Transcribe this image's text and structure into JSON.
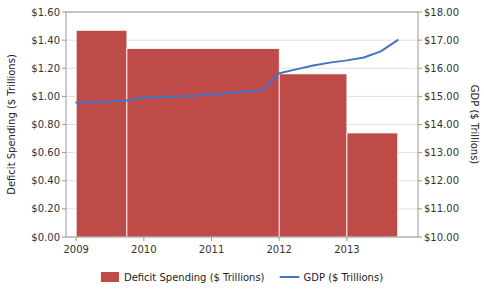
{
  "chart_data": {
    "type": "bar",
    "series": [
      {
        "name": "Deficit Spending ($ Trillions)",
        "type": "bar",
        "color": "#be4b48",
        "bins": [
          2009.0,
          2009.75,
          2012.0,
          2013.0,
          2013.75
        ],
        "values": [
          1.47,
          1.34,
          1.16,
          0.74
        ]
      },
      {
        "name": "GDP ($ Trillions)",
        "type": "line",
        "axis": "y2",
        "color": "#4472c4",
        "x": [
          2009.0,
          2009.15,
          2009.3,
          2009.5,
          2009.75,
          2010.0,
          2010.25,
          2010.5,
          2010.75,
          2011.0,
          2011.25,
          2011.5,
          2011.75,
          2012.0,
          2012.25,
          2012.5,
          2012.75,
          2013.0,
          2013.25,
          2013.5,
          2013.75
        ],
        "values": [
          14.78,
          14.79,
          14.79,
          14.82,
          14.85,
          14.96,
          14.98,
          15.0,
          15.02,
          15.07,
          15.12,
          15.17,
          15.22,
          15.82,
          15.96,
          16.1,
          16.2,
          16.28,
          16.38,
          16.6,
          17.0
        ]
      }
    ],
    "xlim": [
      2008.85,
      2014.05
    ],
    "xticks": [
      2009,
      2010,
      2011,
      2012,
      2013
    ],
    "ylim": [
      0.0,
      1.6
    ],
    "yticks": [
      {
        "value": 0.0,
        "label": "$0.00"
      },
      {
        "value": 0.2,
        "label": "$0.20"
      },
      {
        "value": 0.4,
        "label": "$0.40"
      },
      {
        "value": 0.6,
        "label": "$0.60"
      },
      {
        "value": 0.8,
        "label": "$0.80"
      },
      {
        "value": 1.0,
        "label": "$1.00"
      },
      {
        "value": 1.2,
        "label": "$1.20"
      },
      {
        "value": 1.4,
        "label": "$1.40"
      },
      {
        "value": 1.6,
        "label": "$1.60"
      }
    ],
    "y2lim": [
      10.0,
      18.0
    ],
    "y2ticks": [
      {
        "value": 10.0,
        "label": "$10.00"
      },
      {
        "value": 11.0,
        "label": "$11.00"
      },
      {
        "value": 12.0,
        "label": "$12.00"
      },
      {
        "value": 13.0,
        "label": "$13.00"
      },
      {
        "value": 14.0,
        "label": "$14.00"
      },
      {
        "value": 15.0,
        "label": "$15.00"
      },
      {
        "value": 16.0,
        "label": "$16.00"
      },
      {
        "value": 17.0,
        "label": "$17.00"
      },
      {
        "value": 18.0,
        "label": "$18.00"
      }
    ],
    "ylabel": "Deficit Spending ($ Trillions)",
    "y2label": "GDP ($ Trillions)",
    "grid": true,
    "legend": "bottom"
  }
}
